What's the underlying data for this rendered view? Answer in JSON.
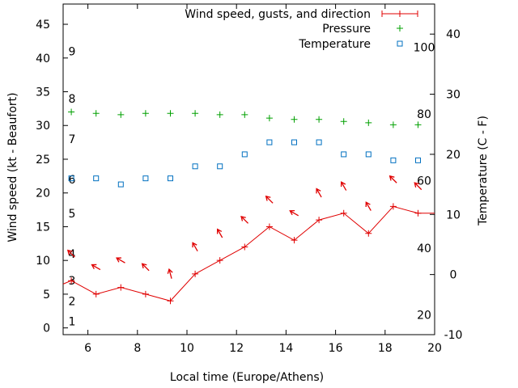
{
  "chart_data": {
    "type": "line",
    "xlabel": "Local time (Europe/Athens)",
    "ylabel_left": "Wind speed (kt - Beaufort)",
    "ylabel_right": "Temperature (C - F)",
    "xlim": [
      5,
      20
    ],
    "ylim_left": [
      -1,
      48
    ],
    "ylim_right": [
      -10,
      45
    ],
    "x_ticks": [
      6,
      8,
      10,
      12,
      14,
      16,
      18,
      20
    ],
    "y_ticks_left": [
      0,
      5,
      10,
      15,
      20,
      25,
      30,
      35,
      40,
      45
    ],
    "y_ticks_right": [
      -10,
      0,
      10,
      20,
      30,
      40
    ],
    "beaufort_scale": [
      {
        "label": "1",
        "kt": 1
      },
      {
        "label": "2",
        "kt": 4
      },
      {
        "label": "3",
        "kt": 7
      },
      {
        "label": "4",
        "kt": 11
      },
      {
        "label": "5",
        "kt": 17
      },
      {
        "label": "6",
        "kt": 22
      },
      {
        "label": "7",
        "kt": 28
      },
      {
        "label": "8",
        "kt": 34
      },
      {
        "label": "9",
        "kt": 41
      }
    ],
    "fahrenheit_scale": [
      {
        "label": "20",
        "c": -6.7
      },
      {
        "label": "40",
        "c": 4.4
      },
      {
        "label": "60",
        "c": 15.6
      },
      {
        "label": "80",
        "c": 26.7
      },
      {
        "label": "100",
        "c": 37.8
      }
    ],
    "legend": [
      "Wind speed, gusts, and direction",
      "Pressure",
      "Temperature"
    ],
    "colors": {
      "wind": "#e00000",
      "pressure": "#00a000",
      "temperature": "#0070c0"
    },
    "series": [
      {
        "name": "Wind speed",
        "x": [
          5,
          5.33,
          6.33,
          7.33,
          8.33,
          9.33,
          10.33,
          11.33,
          12.33,
          13.33,
          14.33,
          15.33,
          16.33,
          17.33,
          18.33,
          19.33,
          20
        ],
        "values": [
          6.5,
          7,
          5,
          6,
          5,
          4,
          8,
          10,
          12,
          15,
          13,
          16,
          17,
          14,
          18,
          17,
          17
        ]
      },
      {
        "name": "Pressure",
        "x": [
          5.33,
          6.33,
          7.33,
          8.33,
          9.33,
          10.33,
          11.33,
          12.33,
          13.33,
          14.33,
          15.33,
          16.33,
          17.33,
          18.33,
          19.33
        ],
        "values": [
          32,
          31.8,
          31.6,
          31.8,
          31.8,
          31.8,
          31.6,
          31.6,
          31.1,
          30.9,
          30.9,
          30.6,
          30.4,
          30.1,
          30.1
        ]
      },
      {
        "name": "Temperature",
        "x": [
          5.33,
          6.33,
          7.33,
          8.33,
          9.33,
          10.33,
          11.33,
          12.33,
          13.33,
          14.33,
          15.33,
          16.33,
          17.33,
          18.33,
          19.33
        ],
        "values": [
          16,
          16,
          15,
          16,
          16,
          18,
          18,
          20,
          22,
          22,
          22,
          20,
          20,
          19,
          19
        ]
      }
    ],
    "wind_direction_arrows": [
      {
        "x": 5.33,
        "y": 11,
        "angle": 315
      },
      {
        "x": 6.33,
        "y": 9,
        "angle": 300
      },
      {
        "x": 7.33,
        "y": 10,
        "angle": 300
      },
      {
        "x": 8.33,
        "y": 9,
        "angle": 315
      },
      {
        "x": 9.33,
        "y": 8,
        "angle": 345
      },
      {
        "x": 10.33,
        "y": 12,
        "angle": 330
      },
      {
        "x": 11.33,
        "y": 14,
        "angle": 330
      },
      {
        "x": 12.33,
        "y": 16,
        "angle": 315
      },
      {
        "x": 13.33,
        "y": 19,
        "angle": 315
      },
      {
        "x": 14.33,
        "y": 17,
        "angle": 300
      },
      {
        "x": 15.33,
        "y": 20,
        "angle": 330
      },
      {
        "x": 16.33,
        "y": 21,
        "angle": 330
      },
      {
        "x": 17.33,
        "y": 18,
        "angle": 330
      },
      {
        "x": 18.33,
        "y": 22,
        "angle": 315
      },
      {
        "x": 19.33,
        "y": 21,
        "angle": 315
      }
    ]
  }
}
